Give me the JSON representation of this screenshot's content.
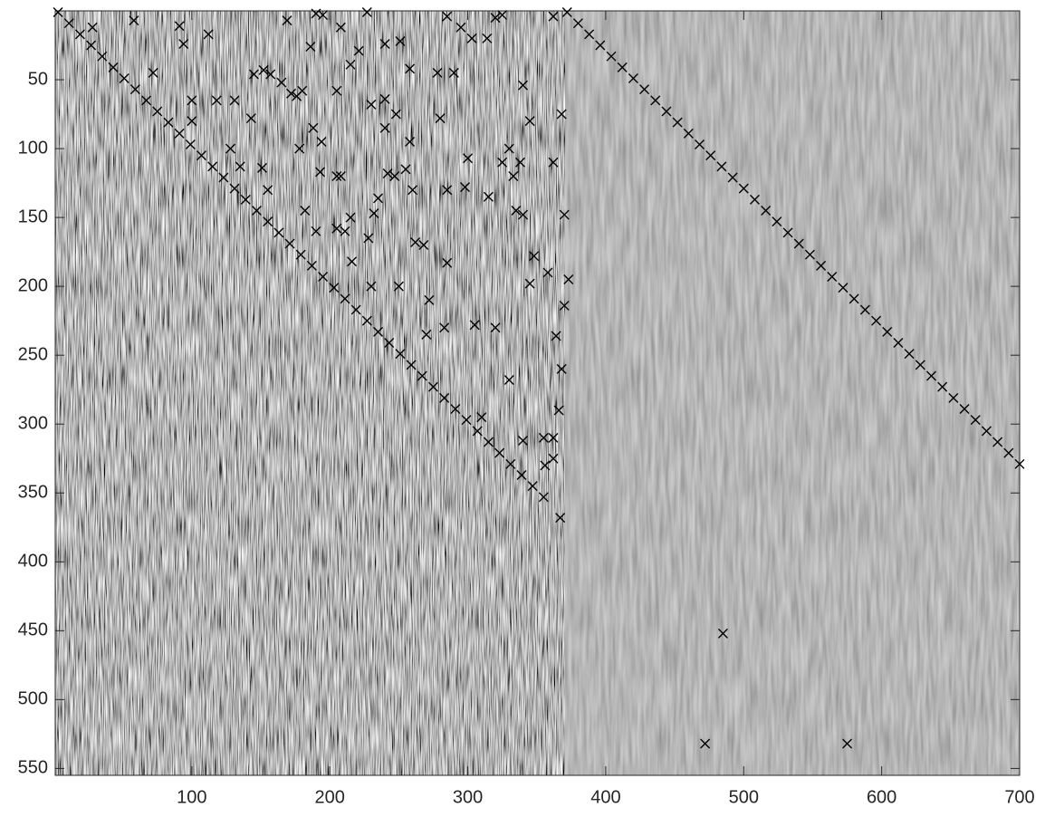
{
  "chart_data": {
    "type": "scatter",
    "marker": "x",
    "color": "#000000",
    "y_reversed": true,
    "xlim": [
      1,
      700
    ],
    "ylim": [
      0,
      555
    ],
    "xticks": [
      100,
      200,
      300,
      400,
      500,
      600,
      700
    ],
    "yticks": [
      50,
      100,
      150,
      200,
      250,
      300,
      350,
      400,
      450,
      500,
      550
    ],
    "x": [
      3,
      11,
      19,
      27,
      35,
      43,
      51,
      59,
      67,
      75,
      83,
      91,
      99,
      107,
      115,
      123,
      131,
      139,
      147,
      155,
      163,
      171,
      179,
      187,
      195,
      203,
      211,
      219,
      227,
      235,
      243,
      251,
      259,
      267,
      275,
      283,
      291,
      299,
      307,
      315,
      323,
      331,
      339,
      347,
      355,
      372,
      380,
      388,
      396,
      404,
      412,
      420,
      428,
      436,
      444,
      452,
      460,
      468,
      476,
      484,
      492,
      500,
      508,
      516,
      524,
      532,
      540,
      548,
      556,
      564,
      572,
      580,
      588,
      596,
      604,
      612,
      620,
      628,
      636,
      644,
      652,
      660,
      668,
      676,
      684,
      692,
      700,
      28,
      58,
      91,
      94,
      112,
      72,
      190,
      195,
      227,
      285,
      320,
      325,
      362,
      169,
      208,
      240,
      251,
      186,
      215,
      221,
      295,
      303,
      314,
      145,
      152,
      157,
      165,
      172,
      176,
      180,
      143,
      131,
      118,
      100,
      100,
      128,
      135,
      151,
      155,
      194,
      193,
      205,
      208,
      215,
      211,
      205,
      216,
      228,
      232,
      235,
      230,
      250,
      242,
      247,
      255,
      258,
      260,
      262,
      268,
      272,
      270,
      283,
      285,
      285,
      298,
      300,
      305,
      310,
      315,
      325,
      333,
      335,
      338,
      340,
      345,
      348,
      358,
      362,
      364,
      366,
      368,
      370,
      370,
      373,
      368,
      345,
      340,
      330,
      330,
      340,
      356,
      362,
      367,
      362,
      355,
      320,
      248,
      240,
      280,
      290,
      278,
      258,
      240,
      230,
      205,
      188,
      190,
      182,
      178,
      485,
      472,
      575
    ],
    "values": [
      1,
      9,
      17,
      25,
      33,
      41,
      49,
      57,
      65,
      73,
      81,
      89,
      97,
      105,
      113,
      121,
      129,
      137,
      145,
      153,
      161,
      169,
      177,
      185,
      193,
      201,
      209,
      217,
      225,
      233,
      241,
      249,
      257,
      265,
      273,
      281,
      289,
      297,
      305,
      313,
      321,
      329,
      337,
      345,
      353,
      1,
      9,
      17,
      25,
      33,
      41,
      49,
      57,
      65,
      73,
      81,
      89,
      97,
      105,
      113,
      121,
      129,
      137,
      145,
      153,
      161,
      169,
      177,
      185,
      193,
      201,
      209,
      217,
      225,
      233,
      241,
      249,
      257,
      265,
      273,
      281,
      289,
      297,
      305,
      313,
      321,
      329,
      12,
      7,
      11,
      24,
      17,
      45,
      2,
      3,
      1,
      4,
      5,
      3,
      4,
      7,
      12,
      24,
      22,
      26,
      39,
      29,
      12,
      20,
      20,
      46,
      43,
      46,
      52,
      60,
      62,
      58,
      78,
      65,
      65,
      65,
      80,
      100,
      113,
      114,
      130,
      95,
      117,
      120,
      120,
      150,
      160,
      158,
      182,
      165,
      147,
      136,
      200,
      200,
      118,
      120,
      115,
      95,
      130,
      168,
      170,
      210,
      235,
      230,
      183,
      130,
      128,
      107,
      228,
      295,
      135,
      110,
      120,
      145,
      110,
      148,
      198,
      178,
      190,
      110,
      236,
      290,
      260,
      148,
      214,
      195,
      75,
      80,
      54,
      100,
      268,
      312,
      330,
      325,
      368,
      310,
      310,
      230,
      75,
      85,
      78,
      45,
      45,
      42,
      64,
      68,
      58,
      85,
      160,
      145,
      100,
      452,
      532,
      532
    ]
  }
}
